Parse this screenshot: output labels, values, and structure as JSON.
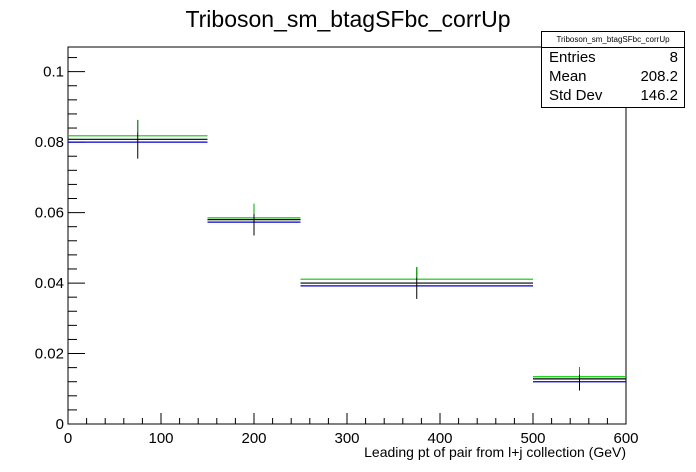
{
  "chart_data": {
    "type": "line",
    "title": "Triboson_sm_btagSFbc_corrUp",
    "xlabel": "Leading pt of pair from l+j collection (GeV)",
    "ylabel": "",
    "xlim": [
      0,
      600
    ],
    "ylim": [
      0,
      0.107
    ],
    "x_ticks": [
      0,
      100,
      200,
      300,
      400,
      500,
      600
    ],
    "x_tick_labels": [
      "0",
      "100",
      "200",
      "300",
      "400",
      "500",
      "600"
    ],
    "y_ticks": [
      0,
      0.02,
      0.04,
      0.06,
      0.08,
      0.1
    ],
    "y_tick_labels": [
      "0",
      "0.02",
      "0.04",
      "0.06",
      "0.08",
      "0.1"
    ],
    "grid": false,
    "bins": [
      {
        "low": 0,
        "high": 150,
        "center": 75
      },
      {
        "low": 150,
        "high": 250,
        "center": 200
      },
      {
        "low": 250,
        "high": 500,
        "center": 375
      },
      {
        "low": 500,
        "high": 600,
        "center": 550
      }
    ],
    "series": [
      {
        "color": "#00cc00",
        "values": [
          0.0818,
          0.0585,
          0.0411,
          0.0134
        ]
      },
      {
        "color": "#000000",
        "values": [
          0.0808,
          0.058,
          0.04,
          0.0128
        ]
      },
      {
        "color": "#0000cc",
        "values": [
          0.08,
          0.0573,
          0.0392,
          0.012
        ]
      }
    ],
    "error_bars": {
      "color": "#000000",
      "center_values": [
        0.0808,
        0.058,
        0.04,
        0.0128
      ],
      "errors": [
        0.0055,
        0.0045,
        0.0045,
        0.0033
      ]
    }
  },
  "stats": {
    "title": "Triboson_sm_btagSFbc_corrUp",
    "rows": [
      {
        "label": "Entries",
        "value": "8"
      },
      {
        "label": "Mean",
        "value": "208.2"
      },
      {
        "label": "Std Dev",
        "value": "146.2"
      }
    ]
  }
}
